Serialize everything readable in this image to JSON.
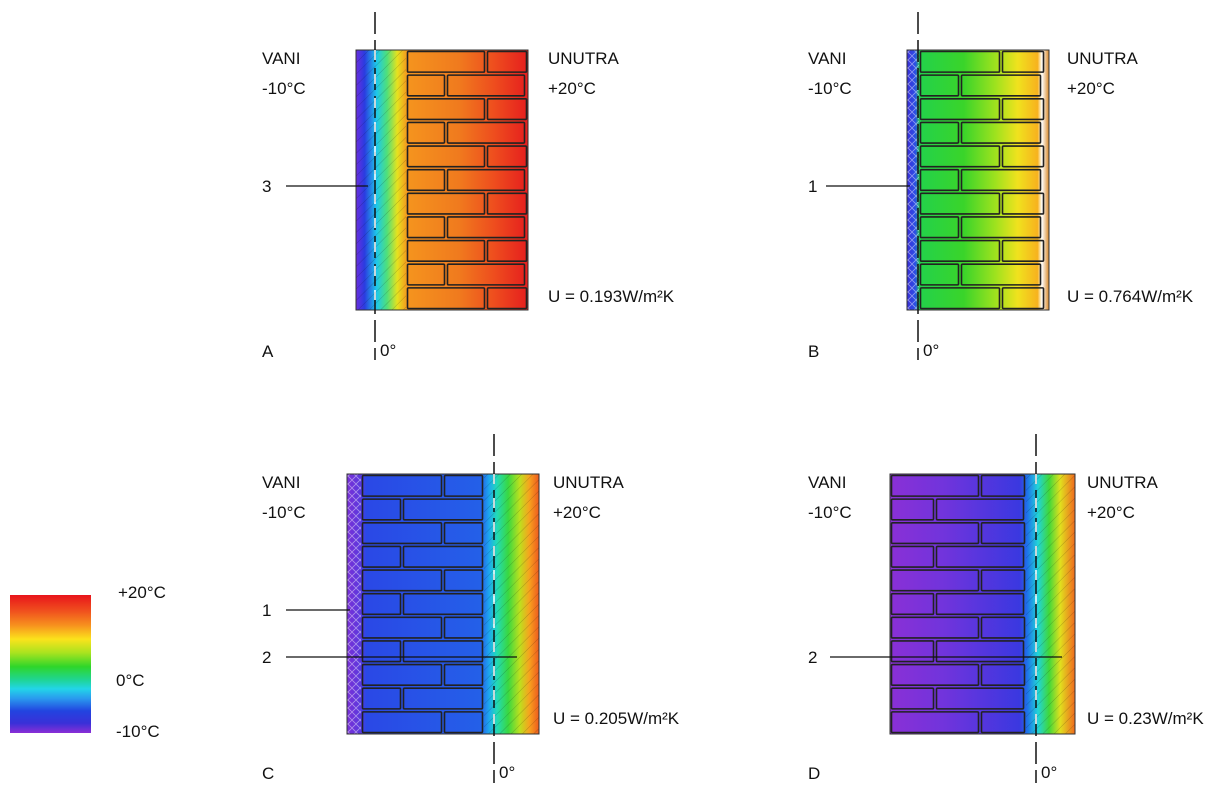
{
  "legend": {
    "max_label": "+20°C",
    "mid_label": "0°C",
    "min_label": "-10°C"
  },
  "panels": [
    {
      "letter": "A",
      "outside_label": "VANI",
      "outside_temp": "-10°C",
      "inside_label": "UNUTRA",
      "inside_temp": "+20°C",
      "u_value": "U = 0.193W/m²K",
      "zero_label": "0°",
      "callouts": [
        "3"
      ]
    },
    {
      "letter": "B",
      "outside_label": "VANI",
      "outside_temp": "-10°C",
      "inside_label": "UNUTRA",
      "inside_temp": "+20°C",
      "u_value": "U = 0.764W/m²K",
      "zero_label": "0°",
      "callouts": [
        "1"
      ]
    },
    {
      "letter": "C",
      "outside_label": "VANI",
      "outside_temp": "-10°C",
      "inside_label": "UNUTRA",
      "inside_temp": "+20°C",
      "u_value": "U = 0.205W/m²K",
      "zero_label": "0°",
      "callouts": [
        "1",
        "2"
      ]
    },
    {
      "letter": "D",
      "outside_label": "VANI",
      "outside_temp": "-10°C",
      "inside_label": "UNUTRA",
      "inside_temp": "+20°C",
      "u_value": "U = 0.23W/m²K",
      "zero_label": "0°",
      "callouts": [
        "2"
      ]
    }
  ]
}
